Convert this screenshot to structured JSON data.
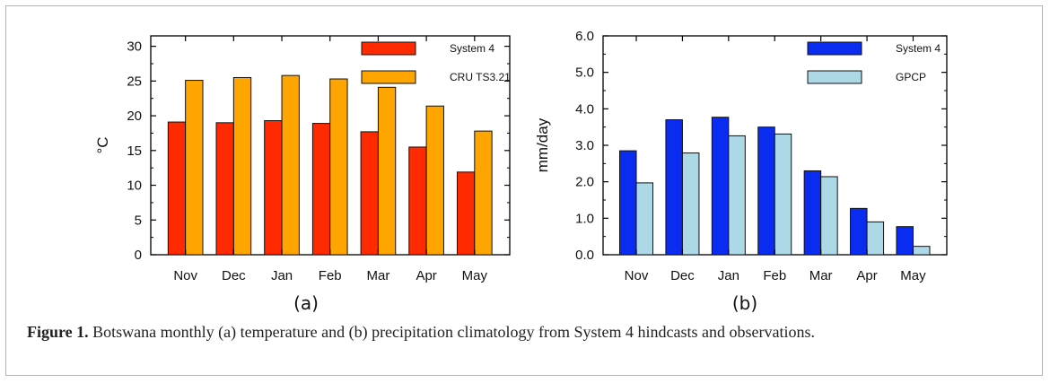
{
  "figure": {
    "caption_label": "Figure 1.",
    "caption_text": "Botswana monthly (a) temperature and (b) precipitation climatology from System 4 hindcasts and observations."
  },
  "chart_data": [
    {
      "type": "bar",
      "panel_label": "(a)",
      "categories": [
        "Nov",
        "Dec",
        "Jan",
        "Feb",
        "Mar",
        "Apr",
        "May"
      ],
      "series": [
        {
          "name": "System 4",
          "color": "#ff2a00",
          "values": [
            19.1,
            19.0,
            19.3,
            18.9,
            17.7,
            15.5,
            11.9
          ]
        },
        {
          "name": "CRU TS3.21",
          "color": "#ffa500",
          "values": [
            25.1,
            25.5,
            25.8,
            25.3,
            24.1,
            21.4,
            17.8
          ]
        }
      ],
      "ylabel": "°C",
      "ylim": [
        0,
        31.5
      ],
      "yticks": [
        0,
        5,
        10,
        15,
        20,
        25,
        30
      ],
      "ytick_labels": [
        "0",
        "5",
        "10",
        "15",
        "20",
        "25",
        "30"
      ],
      "legend_position": "top-right",
      "grid": false
    },
    {
      "type": "bar",
      "panel_label": "(b)",
      "categories": [
        "Nov",
        "Dec",
        "Jan",
        "Feb",
        "Mar",
        "Apr",
        "May"
      ],
      "series": [
        {
          "name": "System 4",
          "color": "#0a2cf0",
          "values": [
            2.85,
            3.7,
            3.77,
            3.5,
            2.3,
            1.27,
            0.77
          ]
        },
        {
          "name": "GPCP",
          "color": "#add8e6",
          "values": [
            1.97,
            2.79,
            3.26,
            3.31,
            2.14,
            0.9,
            0.23
          ]
        }
      ],
      "ylabel": "mm/day",
      "ylim": [
        0,
        6
      ],
      "yticks": [
        0,
        1,
        2,
        3,
        4,
        5,
        6
      ],
      "ytick_labels": [
        "0.0",
        "1.0",
        "2.0",
        "3.0",
        "4.0",
        "5.0",
        "6.0"
      ],
      "legend_position": "top-right",
      "grid": false
    }
  ]
}
